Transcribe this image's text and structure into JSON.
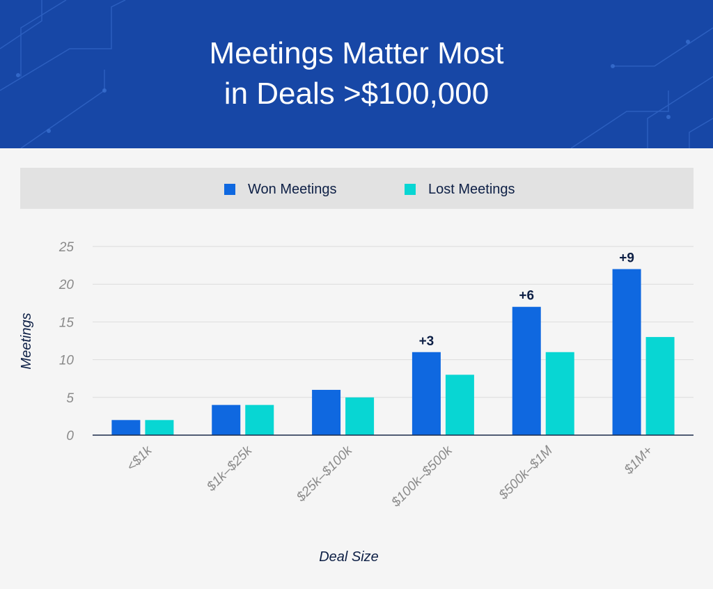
{
  "header": {
    "title_line1": "Meetings Matter Most",
    "title_line2": "in Deals >$100,000",
    "background": "#1747a6"
  },
  "legend": {
    "items": [
      {
        "label": "Won Meetings",
        "color": "#0f68e0"
      },
      {
        "label": "Lost Meetings",
        "color": "#08d6d3"
      }
    ]
  },
  "chart_data": {
    "type": "bar",
    "categories": [
      "<$1k",
      "$1k–$25k",
      "$25k–$100k",
      "$100k–$500k",
      "$500k–$1M",
      "$1M+"
    ],
    "series": [
      {
        "name": "Won Meetings",
        "values": [
          2,
          4,
          6,
          11,
          17,
          22
        ],
        "color": "#0f68e0"
      },
      {
        "name": "Lost Meetings",
        "values": [
          2,
          4,
          5,
          8,
          11,
          13
        ],
        "color": "#08d6d3"
      }
    ],
    "annotations": [
      "",
      "",
      "",
      "+3",
      "+6",
      "+9"
    ],
    "xlabel": "Deal Size",
    "ylabel": "Meetings",
    "ylim": [
      0,
      25
    ],
    "yticks": [
      0,
      5,
      10,
      15,
      20,
      25
    ],
    "grid": true,
    "legend_position": "top"
  }
}
